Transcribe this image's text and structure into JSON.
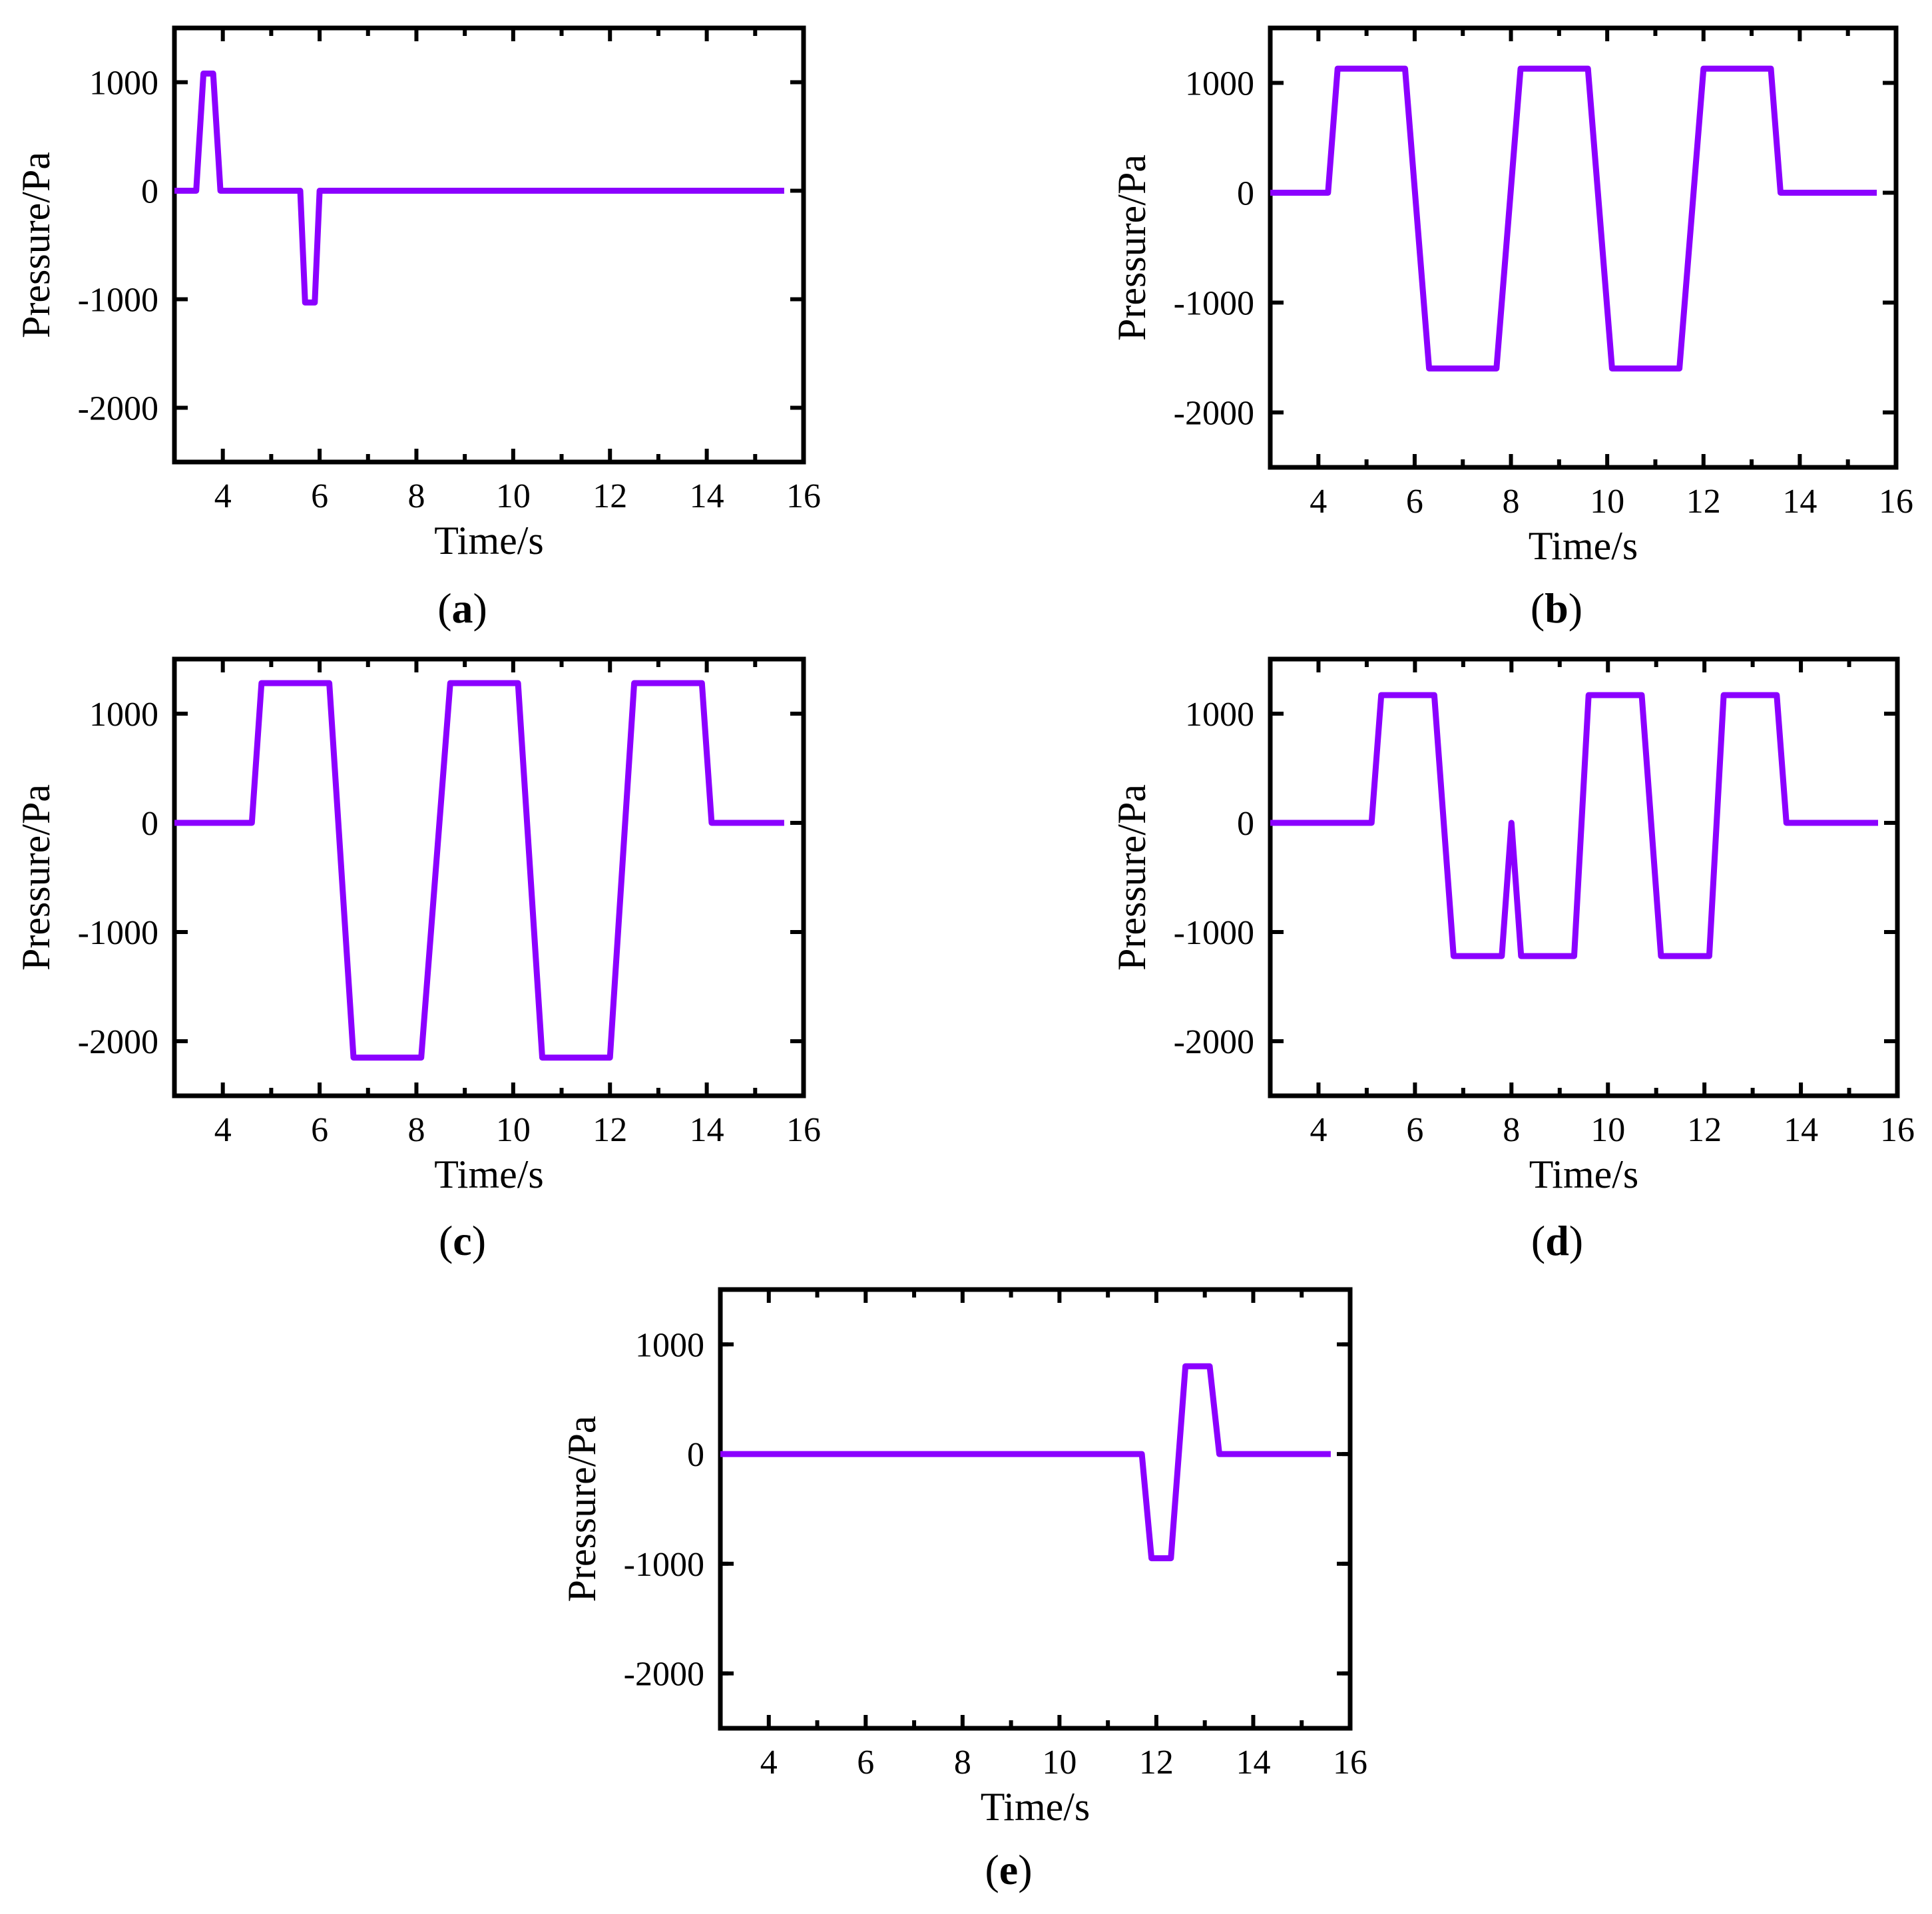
{
  "figure": {
    "series_color": "#8b00ff",
    "panel_labels": [
      "a",
      "b",
      "c",
      "d",
      "e"
    ]
  },
  "chart_data": [
    {
      "panel": "a",
      "type": "line",
      "xlabel": "Time/s",
      "ylabel": "Pressure/Pa",
      "xlim": [
        3,
        16
      ],
      "ylim": [
        -2500,
        1500
      ],
      "xticks": [
        4,
        6,
        8,
        10,
        12,
        14,
        16
      ],
      "yticks": [
        1000,
        0,
        -1000,
        -2000
      ],
      "grid": false,
      "series": [
        {
          "x": [
            3,
            3.45,
            3.6,
            3.8,
            3.95,
            5.6,
            5.7,
            5.9,
            6.0,
            15.6
          ],
          "y": [
            0,
            0,
            1080,
            1080,
            0,
            0,
            -1030,
            -1030,
            0,
            0
          ]
        }
      ]
    },
    {
      "panel": "b",
      "type": "line",
      "xlabel": "Time/s",
      "ylabel": "Pressure/Pa",
      "xlim": [
        3,
        16
      ],
      "ylim": [
        -2500,
        1500
      ],
      "xticks": [
        4,
        6,
        8,
        10,
        12,
        14,
        16
      ],
      "yticks": [
        1000,
        0,
        -1000,
        -2000
      ],
      "grid": false,
      "series": [
        {
          "x": [
            3,
            4.2,
            4.4,
            5.8,
            6.3,
            7.7,
            8.2,
            9.6,
            10.1,
            11.5,
            12.0,
            13.4,
            13.6,
            15.6
          ],
          "y": [
            0,
            0,
            1130,
            1130,
            -1600,
            -1600,
            1130,
            1130,
            -1600,
            -1600,
            1130,
            1130,
            0,
            0
          ]
        }
      ]
    },
    {
      "panel": "c",
      "type": "line",
      "xlabel": "Time/s",
      "ylabel": "Pressure/Pa",
      "xlim": [
        3,
        16
      ],
      "ylim": [
        -2500,
        1500
      ],
      "xticks": [
        4,
        6,
        8,
        10,
        12,
        14,
        16
      ],
      "yticks": [
        1000,
        0,
        -1000,
        -2000
      ],
      "grid": false,
      "series": [
        {
          "x": [
            3,
            4.6,
            4.8,
            6.2,
            6.7,
            8.1,
            8.7,
            10.1,
            10.6,
            12.0,
            12.5,
            13.9,
            14.1,
            15.6
          ],
          "y": [
            0,
            0,
            1280,
            1280,
            -2150,
            -2150,
            1280,
            1280,
            -2150,
            -2150,
            1280,
            1280,
            0,
            0
          ]
        }
      ]
    },
    {
      "panel": "d",
      "type": "line",
      "xlabel": "Time/s",
      "ylabel": "Pressure/Pa",
      "xlim": [
        3,
        16
      ],
      "ylim": [
        -2500,
        1500
      ],
      "xticks": [
        4,
        6,
        8,
        10,
        12,
        14,
        16
      ],
      "yticks": [
        1000,
        0,
        -1000,
        -2000
      ],
      "grid": false,
      "series": [
        {
          "x": [
            3,
            5.1,
            5.3,
            6.4,
            6.8,
            7.8,
            8.0,
            8.2,
            9.3,
            9.6,
            10.7,
            11.1,
            12.1,
            12.4,
            13.5,
            13.7,
            15.6
          ],
          "y": [
            0,
            0,
            1170,
            1170,
            -1220,
            -1220,
            0,
            -1220,
            -1220,
            1170,
            1170,
            -1220,
            -1220,
            1170,
            1170,
            0,
            0
          ]
        }
      ]
    },
    {
      "panel": "e",
      "type": "line",
      "xlabel": "Time/s",
      "ylabel": "Pressure/Pa",
      "xlim": [
        3,
        16
      ],
      "ylim": [
        -2500,
        1500
      ],
      "xticks": [
        4,
        6,
        8,
        10,
        12,
        14,
        16
      ],
      "yticks": [
        1000,
        0,
        -1000,
        -2000
      ],
      "grid": false,
      "series": [
        {
          "x": [
            3,
            11.7,
            11.9,
            12.3,
            12.6,
            13.1,
            13.3,
            15.6
          ],
          "y": [
            0,
            0,
            -950,
            -950,
            800,
            800,
            0,
            0
          ]
        }
      ]
    }
  ]
}
